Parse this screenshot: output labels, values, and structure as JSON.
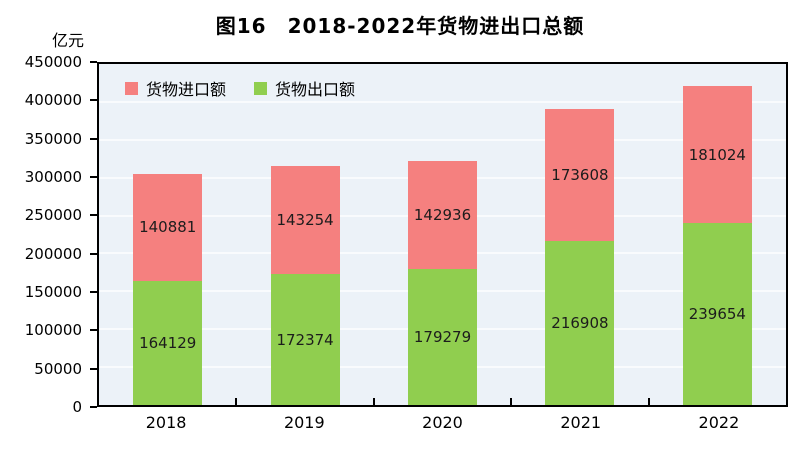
{
  "title": "图16　2018-2022年货物进出口总额",
  "unit_label": "亿元",
  "colors": {
    "import": "#f5807f",
    "export": "#90ce4f",
    "plot_background": "#ecf2f8",
    "gridline": "#f9fbfd",
    "axis": "#000000",
    "value_label": "#1c1c1c"
  },
  "legend": [
    {
      "label": "货物进口额",
      "color": "#f5807f"
    },
    {
      "label": "货物出口额",
      "color": "#90ce4f"
    }
  ],
  "chart_data": {
    "type": "bar",
    "stacked": true,
    "title": "图16　2018-2022年货物进出口总额",
    "ylabel": "亿元",
    "categories": [
      "2018",
      "2019",
      "2020",
      "2021",
      "2022"
    ],
    "series": [
      {
        "name": "货物出口额",
        "color": "#90ce4f",
        "values": [
          164129,
          172374,
          179279,
          216908,
          239654
        ]
      },
      {
        "name": "货物进口额",
        "color": "#f5807f",
        "values": [
          140881,
          143254,
          142936,
          173608,
          181024
        ]
      }
    ],
    "totals": [
      305010,
      315628,
      322215,
      390516,
      420678
    ],
    "ylim": [
      0,
      450000
    ],
    "ytick_step": 50000,
    "yticks": [
      0,
      50000,
      100000,
      150000,
      200000,
      250000,
      300000,
      350000,
      400000,
      450000
    ],
    "grid": true,
    "legend_position": "top-left-inside",
    "value_labels": "inside-segment-center"
  }
}
